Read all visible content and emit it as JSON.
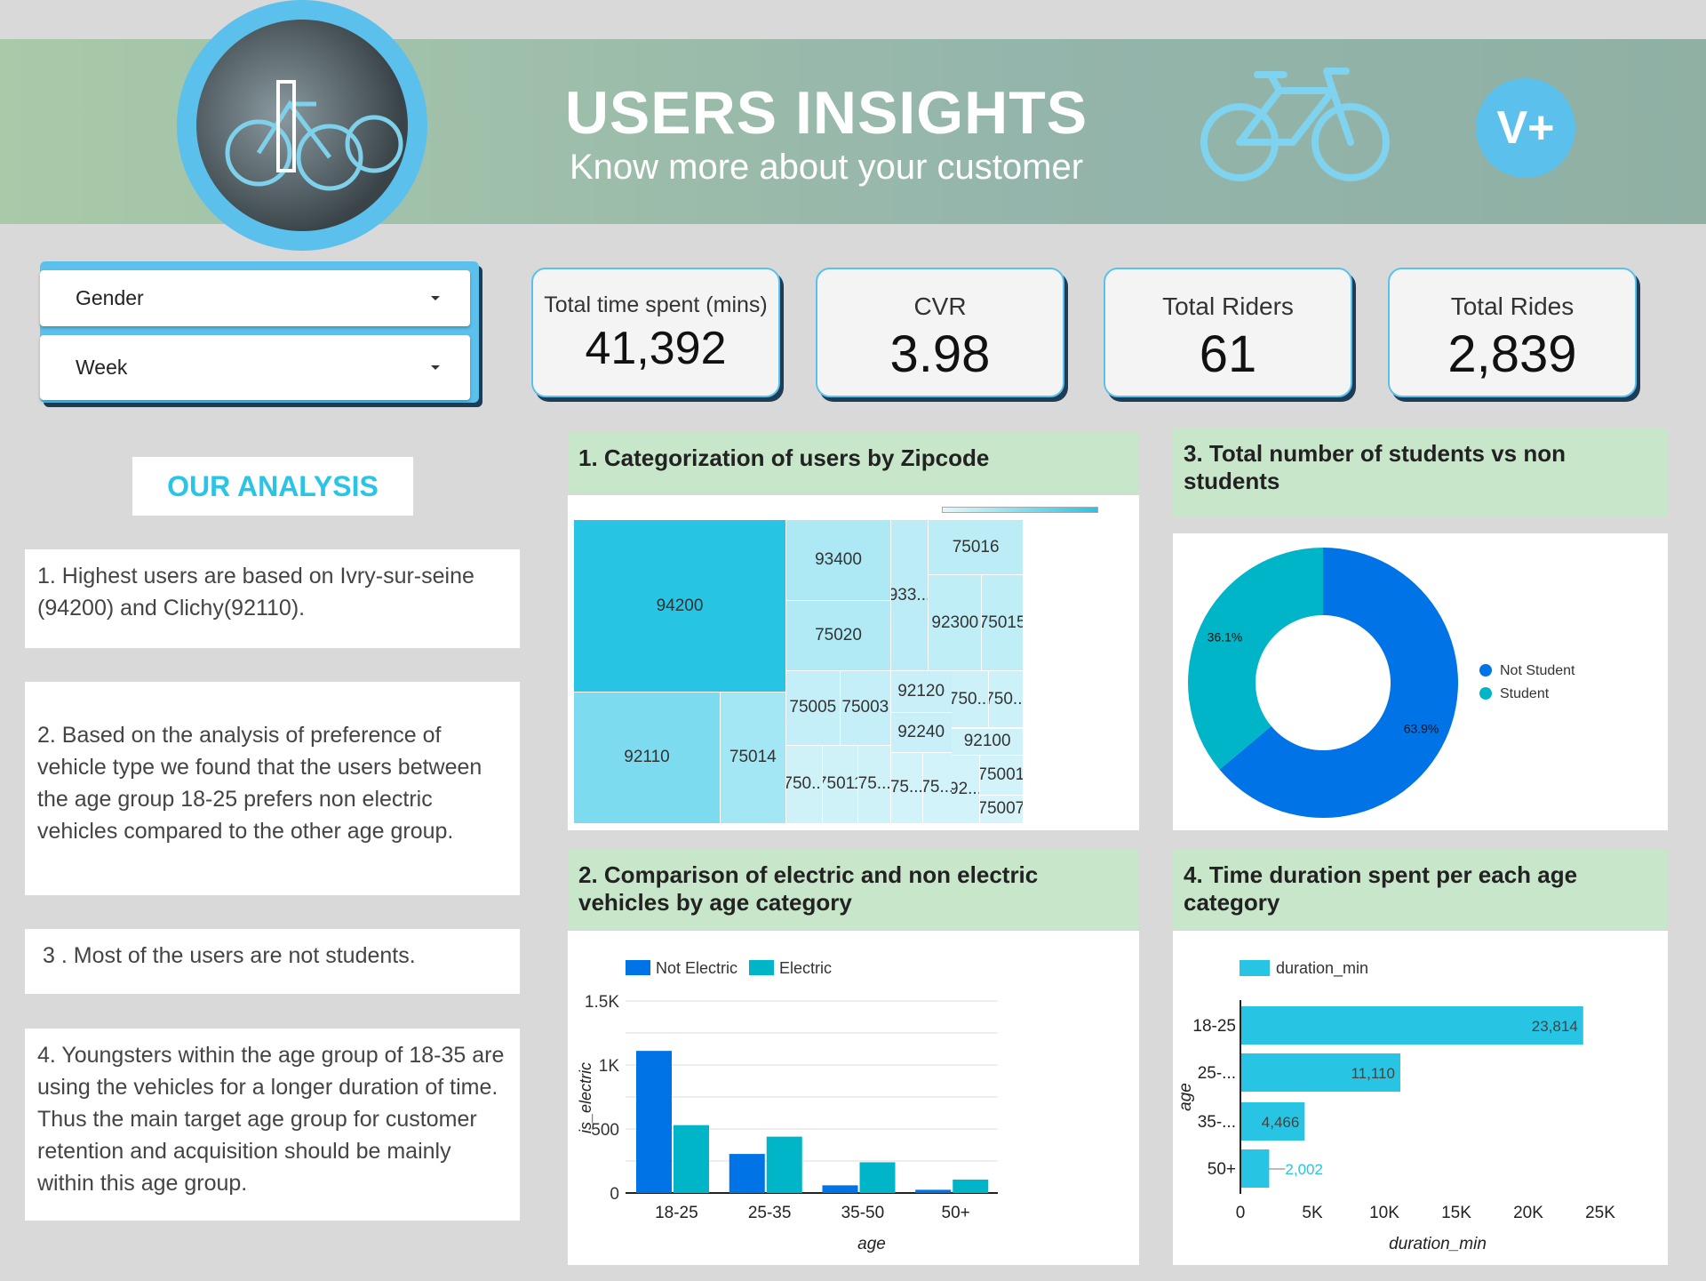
{
  "header": {
    "title": "USERS INSIGHTS",
    "subtitle": "Know more about your customer",
    "logo": "V+",
    "icons": [
      "bicycle-photo",
      "bicycle-icon"
    ]
  },
  "filters": [
    {
      "label": "Gender"
    },
    {
      "label": "Week"
    }
  ],
  "kpis": [
    {
      "label": "Total time spent (mins)",
      "value": "41,392"
    },
    {
      "label": "CVR",
      "value": "3.98"
    },
    {
      "label": "Total Riders",
      "value": "61"
    },
    {
      "label": "Total Rides",
      "value": "2,839"
    }
  ],
  "analysis": {
    "title": "OUR ANALYSIS",
    "notes": [
      "1. Highest users are based on Ivry-sur-seine (94200) and Clichy(92110).",
      "2. Based on the analysis of preference of vehicle type we found that the users between the age group 18-25  prefers non electric vehicles compared to the other age group.",
      "3 . Most of the users are not students.",
      "4. Youngsters within the age group of 18-35 are using the vehicles for a longer duration of time. Thus the main target age group for customer retention and acquisition should be mainly within this age group."
    ]
  },
  "colors": {
    "accent": "#5bc0eb",
    "panel_header": "#c8e6c9",
    "not_electric": "#0073e6",
    "electric": "#00b5c8",
    "duration": "#27c4e4",
    "not_student": "#0073e6",
    "student": "#00b5c8"
  },
  "chart_data": [
    {
      "type": "treemap",
      "title": "1. Categorization of users by Zipcode",
      "cells": [
        {
          "label": "94200",
          "level": 1.0
        },
        {
          "label": "92110",
          "level": 0.55
        },
        {
          "label": "75014",
          "level": 0.35
        },
        {
          "label": "93400",
          "level": 0.3
        },
        {
          "label": "75020",
          "level": 0.28
        },
        {
          "label": "933...",
          "level": 0.22
        },
        {
          "label": "75016",
          "level": 0.22
        },
        {
          "label": "92300",
          "level": 0.2
        },
        {
          "label": "75015",
          "level": 0.2
        },
        {
          "label": "75005",
          "level": 0.18
        },
        {
          "label": "75003",
          "level": 0.18
        },
        {
          "label": "92120",
          "level": 0.15
        },
        {
          "label": "92240",
          "level": 0.15
        },
        {
          "label": "750...",
          "level": 0.13
        },
        {
          "label": "750...",
          "level": 0.13
        },
        {
          "label": "92100",
          "level": 0.12
        },
        {
          "label": "750...",
          "level": 0.12
        },
        {
          "label": "75011",
          "level": 0.12
        },
        {
          "label": "75...",
          "level": 0.12
        },
        {
          "label": "75...",
          "level": 0.1
        },
        {
          "label": "75...",
          "level": 0.1
        },
        {
          "label": "92...",
          "level": 0.1
        },
        {
          "label": "75001",
          "level": 0.1
        },
        {
          "label": "75007",
          "level": 0.08
        }
      ]
    },
    {
      "type": "bar",
      "title": "2. Comparison of electric and non electric vehicles by age category",
      "categories": [
        "18-25",
        "25-35",
        "35-50",
        "50+"
      ],
      "series": [
        {
          "name": "Not Electric",
          "values": [
            1110,
            305,
            60,
            25
          ]
        },
        {
          "name": "Electric",
          "values": [
            530,
            440,
            240,
            105
          ]
        }
      ],
      "xlabel": "age",
      "ylabel": "is_electric",
      "ylim": [
        0,
        1500
      ],
      "yticks": [
        "0",
        "500",
        "1K",
        "1.5K"
      ],
      "yticks_values": [
        0,
        500,
        1000,
        1500
      ],
      "grid": true,
      "legend": "top-left"
    },
    {
      "type": "pie",
      "title": "3. Total number of students vs non students",
      "donut": true,
      "slices": [
        {
          "name": "Not Student",
          "value": 63.9,
          "label": "63.9%"
        },
        {
          "name": "Student",
          "value": 36.1,
          "label": "36.1%"
        }
      ],
      "legend": "right"
    },
    {
      "type": "bar",
      "orientation": "horizontal",
      "title": "4. Time duration spent per each age category",
      "categories": [
        "18-25",
        "25-...",
        "35-...",
        "50+"
      ],
      "series": [
        {
          "name": "duration_min",
          "values": [
            23814,
            11110,
            4466,
            2002
          ],
          "labels": [
            "23,814",
            "11,110",
            "4,466",
            "2,002"
          ]
        }
      ],
      "xlabel": "duration_min",
      "ylabel": "age",
      "xlim": [
        0,
        25000
      ],
      "xticks": [
        "0",
        "5K",
        "10K",
        "15K",
        "20K",
        "25K"
      ],
      "legend": "top-left"
    }
  ]
}
